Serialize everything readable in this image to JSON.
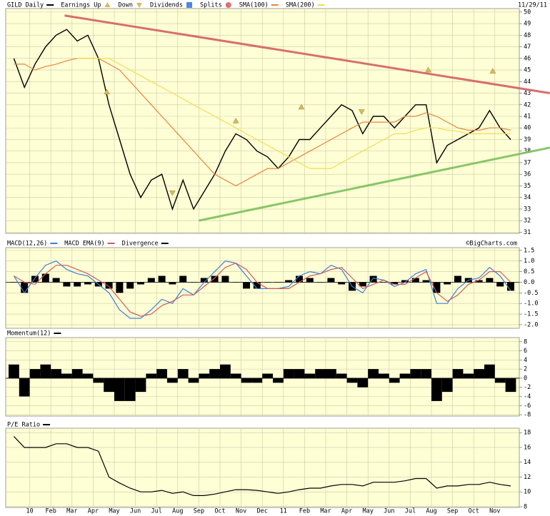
{
  "chart_data": [
    {
      "type": "line",
      "title": "GILD Daily",
      "date": "11/29/11",
      "legend_labels": {
        "up": "Earnings Up",
        "down": "Down",
        "dividends": "Dividends",
        "splits": "Splits"
      },
      "event_colors": {
        "earnings": "#d9b85a",
        "dividends": "#4a8ae0",
        "splits": "#e07070"
      },
      "series": [
        {
          "name": "GILD Daily",
          "color": "#000000",
          "values": [
            46,
            43.5,
            45.5,
            47,
            48,
            48.5,
            47.5,
            48,
            46,
            42,
            39,
            36,
            34,
            35.5,
            36,
            33,
            35.5,
            33,
            34.5,
            36,
            38,
            39.5,
            39,
            38,
            37.5,
            36.5,
            37.5,
            39,
            39,
            40,
            41,
            42,
            41.5,
            39.5,
            41,
            41,
            40,
            41,
            42,
            42,
            37,
            38.5,
            39,
            39.5,
            40,
            41.5,
            40,
            39
          ]
        },
        {
          "name": "SMA(100)",
          "color": "#e8843c",
          "values": [
            45.5,
            45.5,
            45,
            45.3,
            45.5,
            45.8,
            46,
            46,
            46,
            45.5,
            45,
            44,
            43,
            42,
            41,
            40,
            39,
            38,
            37,
            36,
            35.5,
            35,
            35.5,
            36,
            36.5,
            36.5,
            37,
            37.5,
            38,
            38.5,
            39,
            39.5,
            40,
            40.5,
            40.5,
            40.5,
            40.5,
            41,
            41,
            41.3,
            41,
            40.5,
            40,
            39.8,
            39.8,
            40,
            40,
            39.8
          ]
        },
        {
          "name": "SMA(200)",
          "color": "#f2dc50",
          "values": [
            null,
            null,
            null,
            null,
            null,
            null,
            46,
            46,
            46,
            46,
            45.5,
            45,
            44.5,
            44,
            43.5,
            43,
            42.5,
            42,
            41.5,
            41,
            40.5,
            40,
            39.5,
            39,
            38.5,
            38,
            37.5,
            37,
            36.5,
            36.5,
            36.5,
            37,
            37.5,
            38,
            38.5,
            39,
            39.5,
            39.5,
            39.8,
            40,
            40,
            39.8,
            39.7,
            39.5,
            39.5,
            39.5,
            39.5,
            39.5
          ]
        }
      ],
      "earnings": [
        {
          "x": 8.8,
          "y": 43.1,
          "dir": "up"
        },
        {
          "x": 15.0,
          "y": 34.4,
          "dir": "down"
        },
        {
          "x": 21.0,
          "y": 40.6,
          "dir": "up"
        },
        {
          "x": 27.2,
          "y": 41.8,
          "dir": "up"
        },
        {
          "x": 32.9,
          "y": 41.4,
          "dir": "down"
        },
        {
          "x": 39.2,
          "y": 45.0,
          "dir": "up"
        },
        {
          "x": 45.3,
          "y": 44.9,
          "dir": "up"
        }
      ],
      "trendlines": [
        {
          "color": "#d46060",
          "x": [
            4.8,
            50.7
          ],
          "y": [
            49.7,
            43.0
          ]
        },
        {
          "color": "#7cc05c",
          "x": [
            17.5,
            50.7
          ],
          "y": [
            32.0,
            38.3
          ]
        }
      ],
      "ylim": [
        30.9,
        50.3
      ],
      "yticks": [
        31,
        32,
        33,
        34,
        35,
        36,
        37,
        38,
        39,
        40,
        41,
        42,
        43,
        44,
        45,
        46,
        47,
        48,
        49,
        50
      ],
      "grid": true
    },
    {
      "type": "line",
      "credit": "©BigCharts.com",
      "series": [
        {
          "name": "MACD(12,26)",
          "color": "#3c7fd8",
          "values": [
            0.3,
            -0.5,
            0.2,
            0.8,
            1.0,
            0.6,
            0.4,
            0.3,
            -0.1,
            -0.5,
            -1.3,
            -1.7,
            -1.7,
            -1.3,
            -0.8,
            -1.0,
            -0.3,
            -0.6,
            0.0,
            0.5,
            1.0,
            0.9,
            0.3,
            -0.3,
            -0.3,
            -0.3,
            -0.2,
            0.3,
            0.5,
            0.4,
            0.8,
            0.6,
            -0.2,
            -0.5,
            0.2,
            0.1,
            -0.2,
            0.0,
            0.4,
            0.6,
            -1.0,
            -1.0,
            -0.3,
            0.1,
            0.2,
            0.7,
            0.3,
            -0.4
          ]
        },
        {
          "name": "MACD EMA(9)",
          "color": "#d05a5a",
          "values": [
            0.3,
            0.0,
            -0.1,
            0.4,
            0.8,
            0.8,
            0.6,
            0.4,
            0.1,
            -0.2,
            -0.8,
            -1.4,
            -1.6,
            -1.5,
            -1.1,
            -0.9,
            -0.6,
            -0.6,
            -0.2,
            0.2,
            0.7,
            0.9,
            0.6,
            0.0,
            -0.3,
            -0.3,
            -0.3,
            0.0,
            0.3,
            0.4,
            0.6,
            0.7,
            0.2,
            -0.3,
            -0.1,
            0.1,
            -0.1,
            -0.1,
            0.2,
            0.5,
            -0.5,
            -0.9,
            -0.6,
            -0.1,
            0.1,
            0.5,
            0.5,
            0.0
          ]
        },
        {
          "name": "Divergence",
          "color": "#000000",
          "type": "bar",
          "values": [
            0.0,
            -0.5,
            0.3,
            0.4,
            0.2,
            -0.2,
            -0.2,
            -0.1,
            -0.2,
            -0.3,
            -0.5,
            -0.3,
            -0.1,
            0.2,
            0.3,
            -0.1,
            0.3,
            0.0,
            0.2,
            0.3,
            0.3,
            0.0,
            -0.3,
            -0.3,
            0.0,
            0.0,
            0.1,
            0.3,
            0.2,
            0.0,
            0.2,
            -0.1,
            -0.4,
            -0.2,
            0.3,
            0.0,
            -0.1,
            0.1,
            0.2,
            0.1,
            -0.5,
            -0.1,
            0.3,
            0.2,
            0.1,
            0.2,
            -0.2,
            -0.4
          ]
        }
      ],
      "ylim": [
        -2.17,
        1.63
      ],
      "yticks": [
        1.5,
        {
          "value": 1,
          "label": "1.0"
        },
        0.5,
        {
          "value": 0,
          "label": "0.0"
        },
        -0.5,
        {
          "value": -1,
          "label": "-1.0"
        },
        -1.5,
        {
          "value": -2,
          "label": "-2.0"
        }
      ],
      "grid": true
    },
    {
      "type": "bar",
      "series": [
        {
          "name": "Momentum(12)",
          "color": "#000000",
          "values": [
            3,
            -4,
            2,
            3,
            2,
            1,
            2,
            1,
            -1,
            -3,
            -5,
            -5,
            -3,
            1,
            2,
            -1,
            2,
            -1,
            1,
            2,
            3,
            1,
            -1,
            -1,
            1,
            -1,
            2,
            2,
            1,
            2,
            2,
            1,
            -1,
            -2,
            2,
            1,
            -1,
            1,
            2,
            2,
            -5,
            -3,
            2,
            1,
            2,
            3,
            -1,
            -3
          ]
        }
      ],
      "ylim": [
        -8.3,
        8.9
      ],
      "yticks": [
        8,
        6,
        4,
        2,
        0,
        -2,
        -4,
        -6,
        -8
      ],
      "grid": true
    },
    {
      "type": "line",
      "series": [
        {
          "name": "P/E Ratio",
          "color": "#000000",
          "values": [
            17.5,
            16,
            16,
            16,
            16.5,
            16.5,
            16,
            16,
            15.5,
            12,
            11.2,
            10.5,
            10,
            10,
            10.2,
            9.8,
            10,
            9.5,
            9.5,
            9.7,
            10,
            10.3,
            10.3,
            10.2,
            10,
            9.8,
            10,
            10.3,
            10.5,
            10.5,
            10.8,
            11,
            11,
            10.8,
            11.3,
            11.3,
            11.3,
            11.5,
            11.8,
            11.8,
            10.5,
            10.8,
            10.8,
            11,
            11,
            11.3,
            11,
            10.8
          ]
        }
      ],
      "categories": [
        null,
        null,
        "10",
        null,
        "Feb",
        null,
        "Mar",
        null,
        "Apr",
        null,
        "May",
        null,
        "Jun",
        null,
        "Jul",
        null,
        "Aug",
        null,
        "Sep",
        null,
        "Oct",
        null,
        "Nov",
        null,
        "Dec",
        null,
        "11",
        null,
        "Feb",
        null,
        "Mar",
        null,
        "Apr",
        null,
        "May",
        null,
        "Jun",
        null,
        "Jul",
        null,
        "Aug",
        null,
        "Sep",
        null,
        "Oct",
        null,
        "Nov",
        null
      ],
      "ylim": [
        7.9,
        18.6
      ],
      "yticks": [
        18,
        16,
        14,
        12,
        10,
        8
      ],
      "grid": true
    }
  ]
}
